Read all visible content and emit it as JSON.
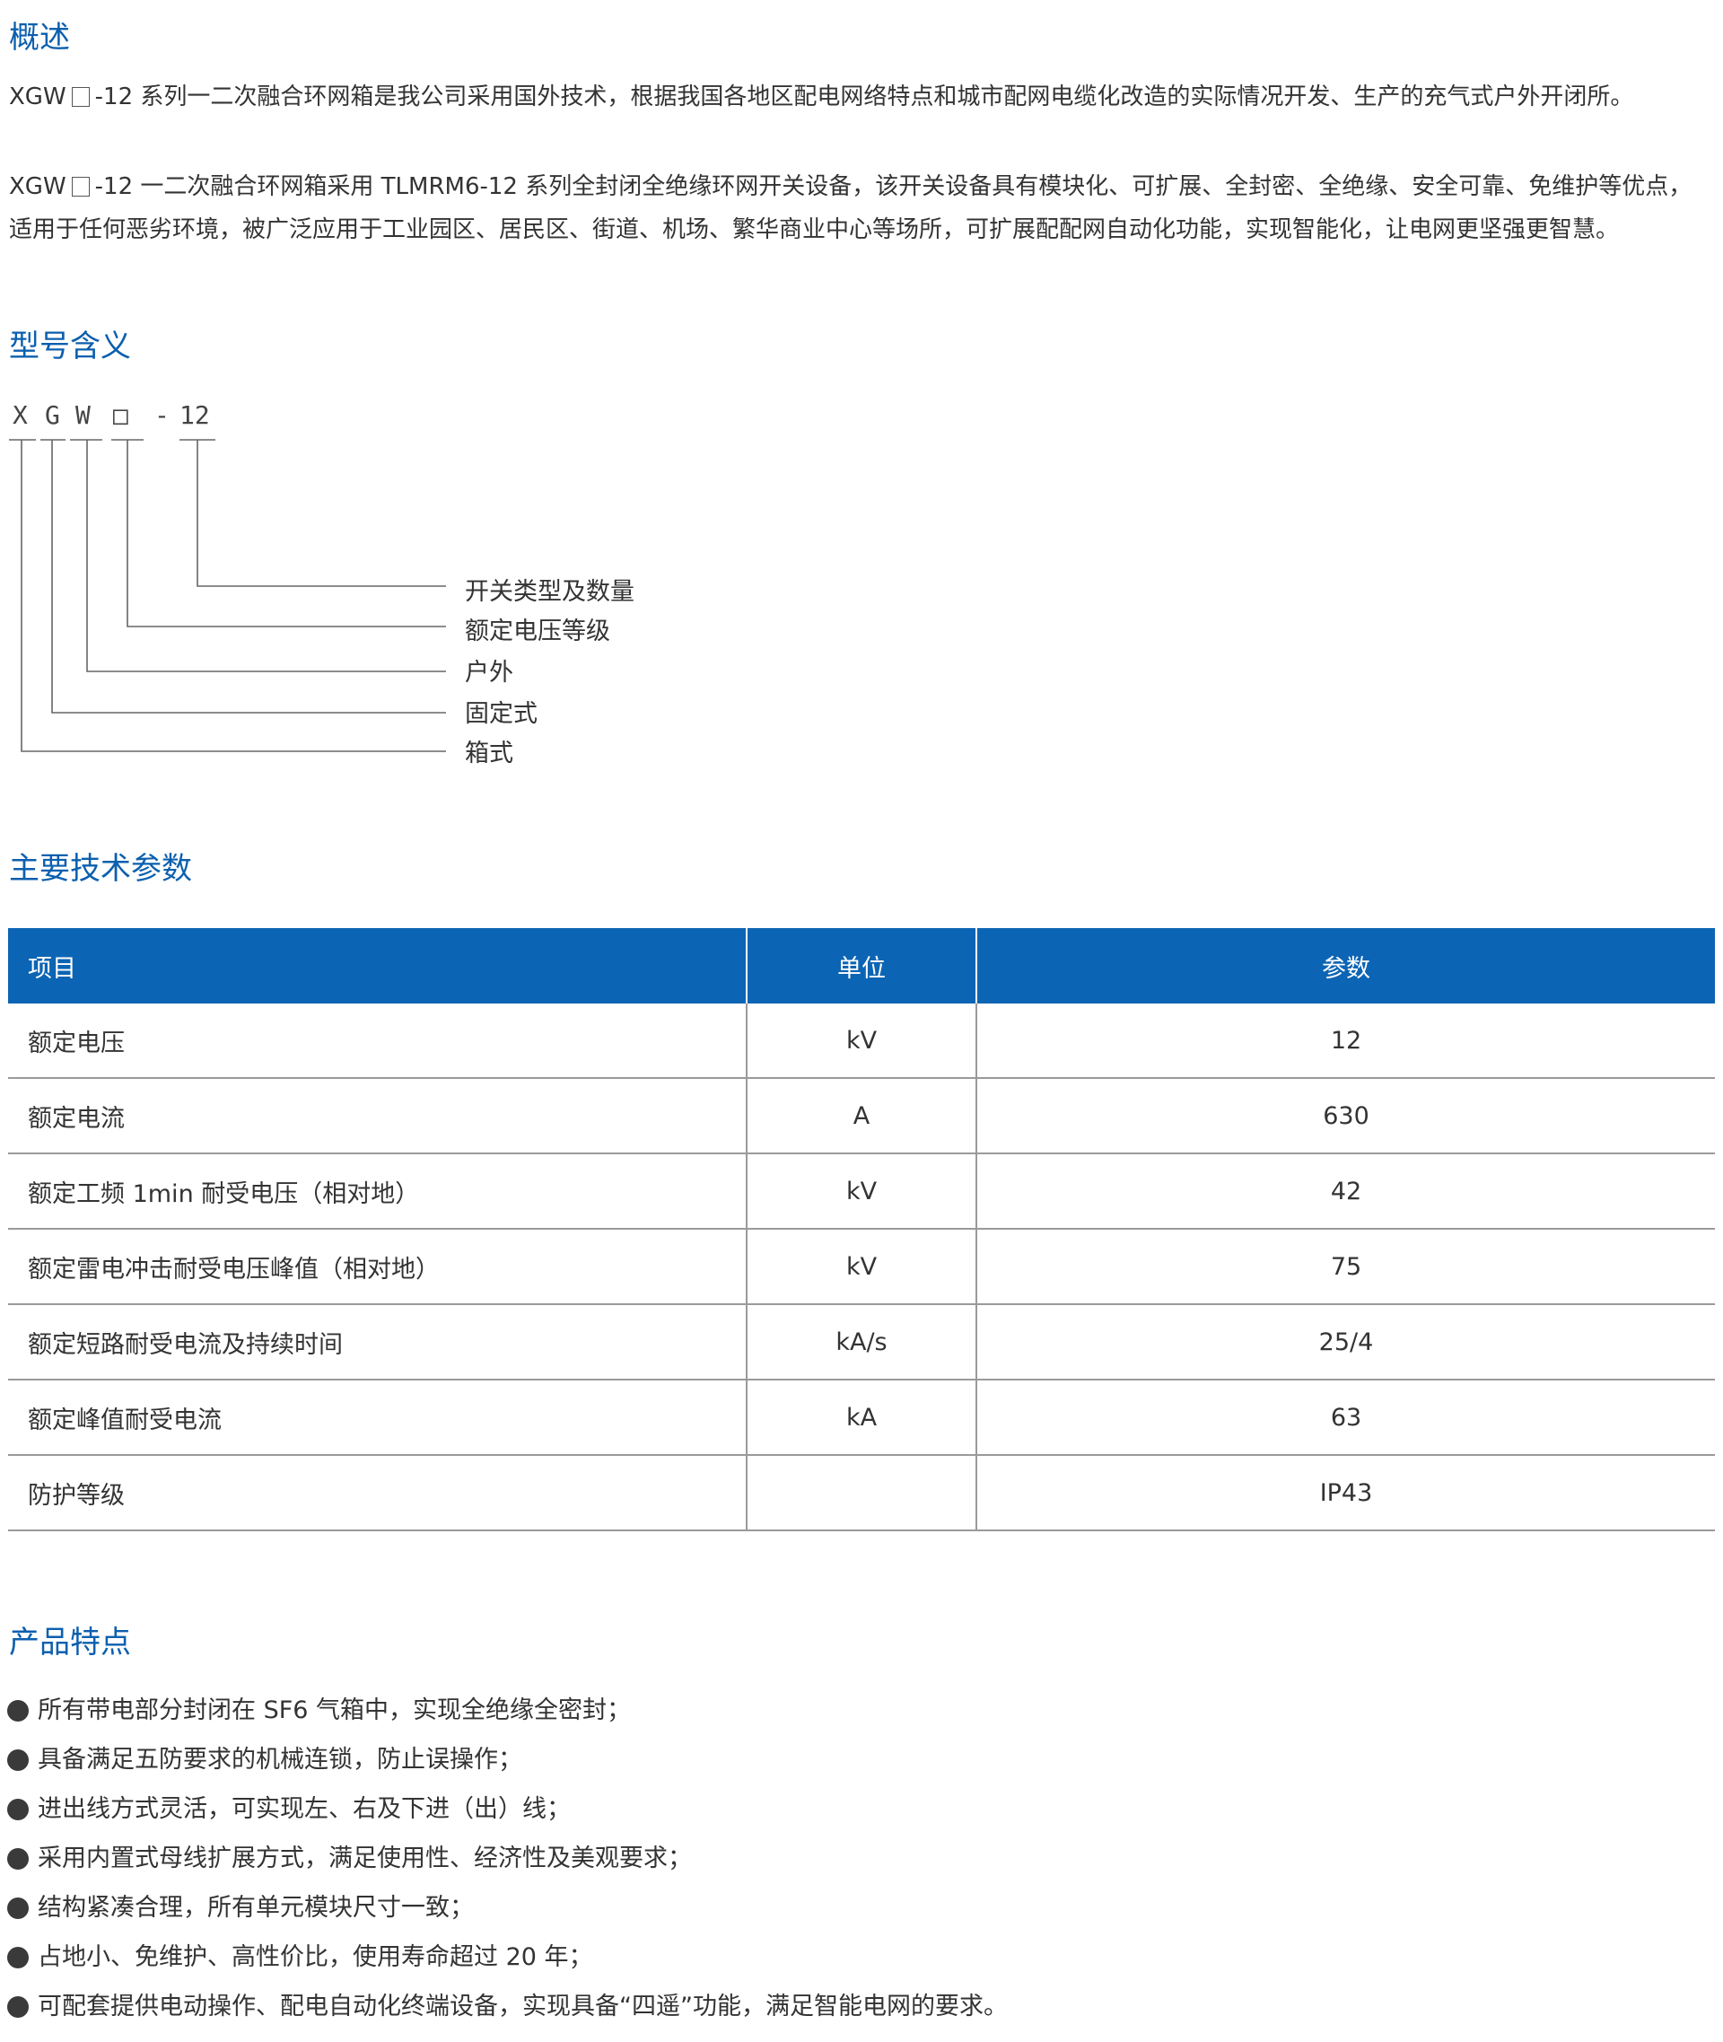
{
  "overview": {
    "title": "概述",
    "para1": {
      "prefix": "XGW",
      "text": "-12 系列一二次融合环网箱是我公司采用国外技术，根据我国各地区配电网络特点和城市配网电缆化改造的实际情况开发、生产的充气式户外开闭所。"
    },
    "para2": {
      "prefix": "XGW",
      "text": "-12 一二次融合环网箱采用 TLMRM6-12 系列全封闭全绝缘环网开关设备，该开关设备具有模块化、可扩展、全封密、全绝缘、安全可靠、免维护等优点，适用于任何恶劣环境，被广泛应用于工业园区、居民区、街道、机场、繁华商业中心等场所，可扩展配配网自动化功能，实现智能化，让电网更坚强更智慧。"
    }
  },
  "model": {
    "title": "型号含义",
    "code": [
      "X",
      "G",
      "W",
      "□",
      "-",
      "12"
    ],
    "meanings": [
      "开关类型及数量",
      "额定电压等级",
      "户外",
      "固定式",
      "箱式"
    ]
  },
  "specs": {
    "title": "主要技术参数",
    "headers": {
      "item": "项目",
      "unit": "单位",
      "value": "参数"
    },
    "rows": [
      {
        "item": "额定电压",
        "unit": "kV",
        "value": "12"
      },
      {
        "item": "额定电流",
        "unit": "A",
        "value": "630"
      },
      {
        "item": "额定工频 1min 耐受电压（相对地）",
        "unit": "kV",
        "value": "42"
      },
      {
        "item": "额定雷电冲击耐受电压峰值（相对地）",
        "unit": "kV",
        "value": "75"
      },
      {
        "item": "额定短路耐受电流及持续时间",
        "unit": "kA/s",
        "value": "25/4"
      },
      {
        "item": "额定峰值耐受电流",
        "unit": "kA",
        "value": "63"
      },
      {
        "item": "防护等级",
        "unit": "",
        "value": "IP43"
      }
    ]
  },
  "features": {
    "title": "产品特点",
    "items": [
      "所有带电部分封闭在 SF6 气箱中，实现全绝缘全密封；",
      "具备满足五防要求的机械连锁，防止误操作；",
      "进出线方式灵活，可实现左、右及下进（出）线；",
      "采用内置式母线扩展方式，满足使用性、经济性及美观要求；",
      "结构紧凑合理，所有单元模块尺寸一致；",
      "占地小、免维护、高性价比，使用寿命超过 20 年；",
      "可配套提供电动操作、配电自动化终端设备，实现具备“四遥”功能，满足智能电网的要求。"
    ]
  },
  "colors": {
    "accent": "#0c5fae",
    "table_header": "#0c64b4"
  }
}
